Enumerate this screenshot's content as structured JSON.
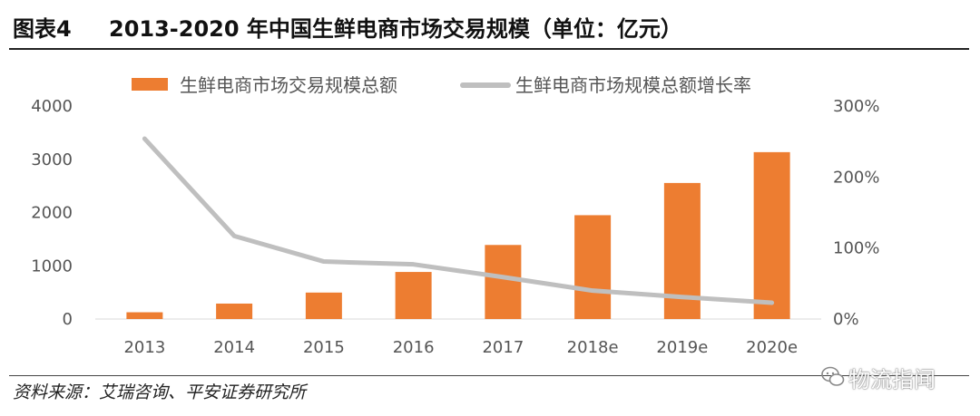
{
  "header": {
    "figure_label": "图表4",
    "title": "2013-2020 年中国生鲜电商市场交易规模（单位：亿元）"
  },
  "footer": {
    "source": "资料来源：艾瑞咨询、平安证券研究所"
  },
  "watermark": {
    "text": "物流指闻",
    "icon": "wechat-icon"
  },
  "chart_data": {
    "type": "bar",
    "categories": [
      "2013",
      "2014",
      "2015",
      "2016",
      "2017",
      "2018e",
      "2019e",
      "2020e"
    ],
    "series": [
      {
        "name": "生鲜电商市场交易规模总额",
        "type": "bar",
        "axis": "left",
        "color": "#ED7D31",
        "values": [
          127,
          290,
          497,
          884,
          1391,
          1950,
          2555,
          3134
        ]
      },
      {
        "name": "生鲜电商市场规模总额增长率",
        "type": "line",
        "axis": "right",
        "color": "#BFBFBF",
        "values": [
          254,
          117,
          81,
          77,
          59,
          40,
          31,
          23
        ]
      }
    ],
    "y_left": {
      "ticks": [
        "0",
        "1000",
        "2000",
        "3000",
        "4000"
      ],
      "lim": [
        0,
        4000
      ]
    },
    "y_right": {
      "ticks": [
        "0%",
        "100%",
        "200%",
        "300%"
      ],
      "lim": [
        0,
        300
      ],
      "unit": "%"
    },
    "legend_position": "top",
    "grid": false
  }
}
